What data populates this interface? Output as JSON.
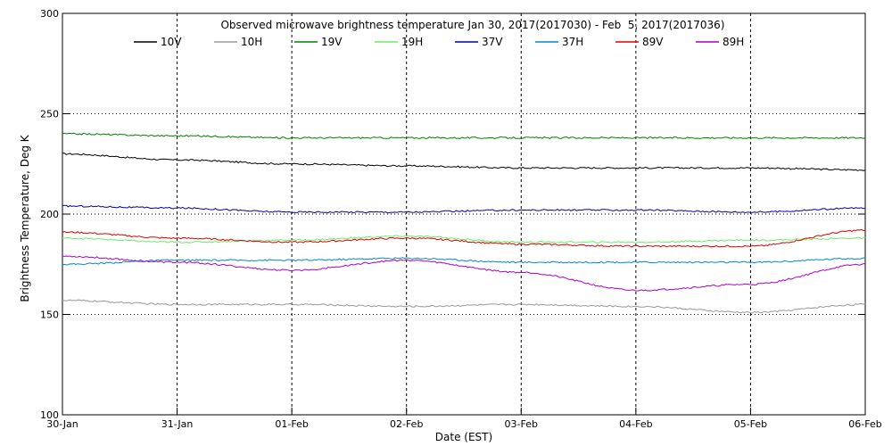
{
  "chart_data": {
    "type": "line",
    "title": "Observed microwave brightness temperature Jan 30, 2017(2017030) - Feb  5, 2017(2017036)",
    "xlabel": "Date (EST)",
    "ylabel": "Brightness Temperature, Deg K",
    "ylim": [
      100,
      300
    ],
    "xlim": [
      "2017-01-30",
      "2017-02-06"
    ],
    "yticks": [
      100,
      150,
      200,
      250,
      300
    ],
    "y_gridlines": [
      150,
      200,
      250
    ],
    "x_ticks": [
      "30-Jan",
      "31-Jan",
      "01-Feb",
      "02-Feb",
      "03-Feb",
      "04-Feb",
      "05-Feb",
      "06-Feb"
    ],
    "x_gridlines": true,
    "legend_position": "top",
    "x": [
      "2017-01-30",
      "2017-01-31",
      "2017-02-01",
      "2017-02-02",
      "2017-02-03",
      "2017-02-04",
      "2017-02-05",
      "2017-02-06"
    ],
    "series": [
      {
        "name": "10V",
        "color": "#000000",
        "values": [
          230,
          227,
          225,
          224,
          223,
          223,
          223,
          222
        ]
      },
      {
        "name": "10H",
        "color": "#999999",
        "values": [
          157,
          155,
          155,
          154,
          155,
          154,
          151,
          155
        ]
      },
      {
        "name": "19V",
        "color": "#008000",
        "values": [
          240,
          239,
          238,
          238,
          238,
          238,
          238,
          238
        ]
      },
      {
        "name": "19H",
        "color": "#66ee66",
        "values": [
          188,
          186,
          187,
          189,
          186,
          186,
          187,
          188
        ]
      },
      {
        "name": "37V",
        "color": "#0000aa",
        "values": [
          204,
          203,
          201,
          201,
          202,
          202,
          201,
          203
        ]
      },
      {
        "name": "37H",
        "color": "#0088cc",
        "values": [
          175,
          177,
          177,
          178,
          176,
          176,
          176,
          178
        ]
      },
      {
        "name": "89V",
        "color": "#dd0000",
        "values": [
          191,
          188,
          186,
          188,
          185,
          184,
          184,
          192
        ]
      },
      {
        "name": "89H",
        "color": "#aa00cc",
        "values": [
          179,
          176,
          172,
          177,
          171,
          162,
          165,
          175
        ]
      }
    ]
  }
}
